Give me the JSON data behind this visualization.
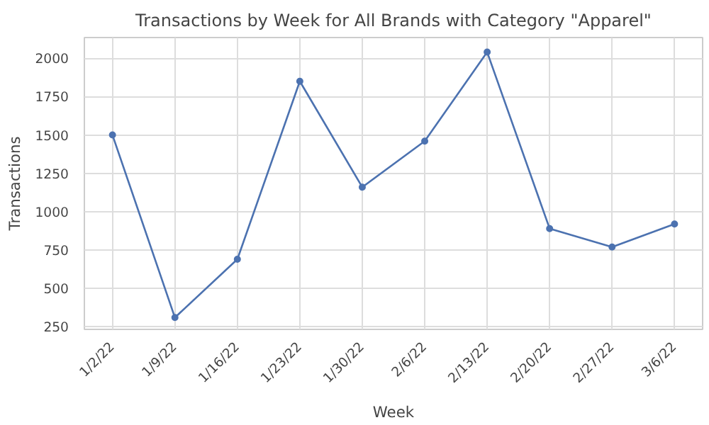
{
  "chart_data": {
    "type": "line",
    "title": "Transactions by Week for All Brands with Category \"Apparel\"",
    "xlabel": "Week",
    "ylabel": "Transactions",
    "categories": [
      "1/2/22",
      "1/9/22",
      "1/16/22",
      "1/23/22",
      "1/30/22",
      "2/6/22",
      "2/13/22",
      "2/20/22",
      "2/27/22",
      "3/6/22"
    ],
    "series": [
      {
        "color": "#4c72b0",
        "values": [
          1500,
          310,
          690,
          1850,
          1160,
          1460,
          2040,
          890,
          770,
          920
        ]
      }
    ],
    "ylim": [
      233,
      2135
    ],
    "yticks": [
      250,
      500,
      750,
      1000,
      1250,
      1500,
      1750,
      2000
    ],
    "grid": true,
    "marker": "circle",
    "line_style": "solid"
  }
}
